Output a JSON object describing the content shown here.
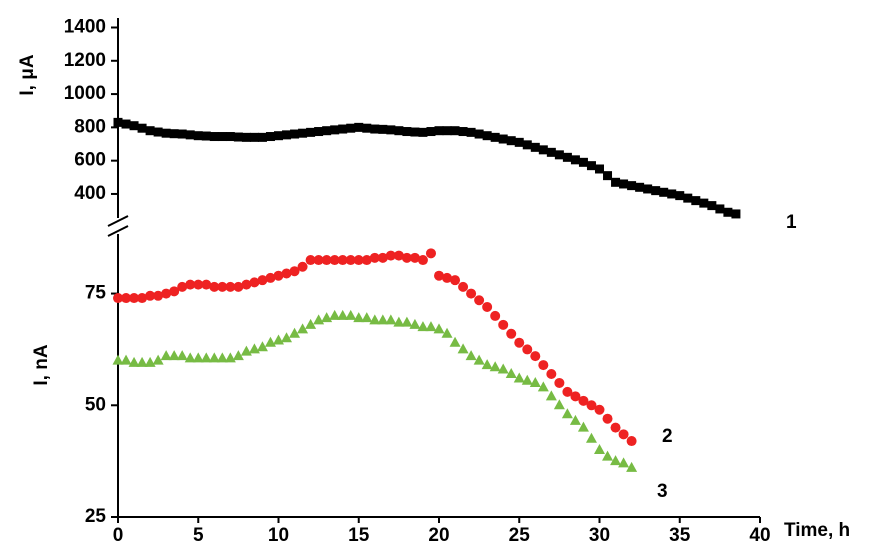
{
  "chart_data": [
    {
      "type": "scatter",
      "ylabel": "I, μA",
      "xlim": [
        0,
        40
      ],
      "ylim": [
        270,
        1460
      ],
      "yticks": [
        400,
        600,
        800,
        1000,
        1200,
        1400
      ],
      "series": [
        {
          "name": "1",
          "color": "#000000",
          "marker": "square",
          "x": [
            0,
            0.5,
            1,
            1.5,
            2,
            2.5,
            3,
            3.5,
            4,
            4.5,
            5,
            5.5,
            6,
            6.5,
            7,
            7.5,
            8,
            8.5,
            9,
            9.5,
            10,
            10.5,
            11,
            11.5,
            12,
            12.5,
            13,
            13.5,
            14,
            14.5,
            15,
            15.5,
            16,
            16.5,
            17,
            17.5,
            18,
            18.5,
            19,
            19.5,
            20,
            20.5,
            21,
            21.5,
            22,
            22.5,
            23,
            23.5,
            24,
            24.5,
            25,
            25.5,
            26,
            26.5,
            27,
            27.5,
            28,
            28.5,
            29,
            29.5,
            30,
            30.5,
            31,
            31.5,
            32,
            32.5,
            33,
            33.5,
            34,
            34.5,
            35,
            35.5,
            36,
            36.5,
            37,
            37.5,
            38,
            38.5
          ],
          "values": [
            830,
            820,
            810,
            795,
            780,
            772,
            765,
            762,
            760,
            755,
            750,
            748,
            745,
            745,
            745,
            742,
            740,
            740,
            740,
            745,
            750,
            755,
            760,
            765,
            770,
            775,
            780,
            785,
            790,
            795,
            800,
            795,
            790,
            788,
            785,
            780,
            775,
            772,
            770,
            775,
            780,
            780,
            780,
            775,
            770,
            760,
            750,
            740,
            730,
            720,
            710,
            695,
            680,
            665,
            650,
            635,
            620,
            605,
            590,
            570,
            550,
            510,
            470,
            460,
            450,
            440,
            430,
            420,
            410,
            400,
            390,
            375,
            360,
            345,
            330,
            310,
            290,
            280
          ]
        }
      ]
    },
    {
      "type": "scatter",
      "ylabel": "I, nA",
      "xlabel": "Time, h",
      "xlim": [
        0,
        40
      ],
      "ylim": [
        25,
        89
      ],
      "xticks": [
        0,
        5,
        10,
        15,
        20,
        25,
        30,
        35,
        40
      ],
      "yticks": [
        25,
        50,
        75
      ],
      "x": [
        0,
        0.5,
        1,
        1.5,
        2,
        2.5,
        3,
        3.5,
        4,
        4.5,
        5,
        5.5,
        6,
        6.5,
        7,
        7.5,
        8,
        8.5,
        9,
        9.5,
        10,
        10.5,
        11,
        11.5,
        12,
        12.5,
        13,
        13.5,
        14,
        14.5,
        15,
        15.5,
        16,
        16.5,
        17,
        17.5,
        18,
        18.5,
        19,
        19.5,
        20,
        20.5,
        21,
        21.5,
        22,
        22.5,
        23,
        23.5,
        24,
        24.5,
        25,
        25.5,
        26,
        26.5,
        27,
        27.5,
        28,
        28.5,
        29,
        29.5,
        30,
        30.5,
        31,
        31.5,
        32
      ],
      "series": [
        {
          "name": "2",
          "color": "#ee2222",
          "marker": "circle",
          "values": [
            74,
            74,
            74,
            74,
            74.5,
            74.5,
            75,
            75.5,
            76.5,
            77,
            77,
            77,
            76.5,
            76.5,
            76.5,
            76.5,
            77,
            77.5,
            78,
            78.5,
            79,
            79.5,
            80,
            81,
            82.5,
            82.5,
            82.5,
            82.5,
            82.5,
            82.5,
            82.5,
            82.5,
            83,
            83,
            83.5,
            83.5,
            83,
            83,
            82.5,
            84,
            79,
            78.5,
            78,
            76.5,
            75,
            73.5,
            72,
            70,
            68,
            66,
            64,
            62.5,
            61,
            59,
            57,
            55,
            53,
            52,
            51,
            50,
            49,
            47,
            45,
            43.5,
            42
          ]
        },
        {
          "name": "3",
          "color": "#77bb44",
          "marker": "triangle",
          "values": [
            60,
            60,
            59.5,
            59.5,
            59.5,
            60,
            61,
            61,
            61,
            60.5,
            60.5,
            60.5,
            60.5,
            60.5,
            60.5,
            61,
            62,
            62.5,
            63,
            64,
            64.5,
            65,
            66,
            67,
            68,
            69,
            69.5,
            70,
            70,
            70,
            69.5,
            69.5,
            69,
            69,
            69,
            68.5,
            68.5,
            68,
            67.5,
            67.5,
            67,
            66,
            64,
            62.5,
            61,
            60,
            59,
            58.5,
            58,
            57,
            56,
            55.5,
            55,
            54,
            52,
            50,
            48,
            46.5,
            45,
            42.5,
            40,
            38.5,
            37.5,
            37,
            36
          ]
        }
      ]
    }
  ]
}
